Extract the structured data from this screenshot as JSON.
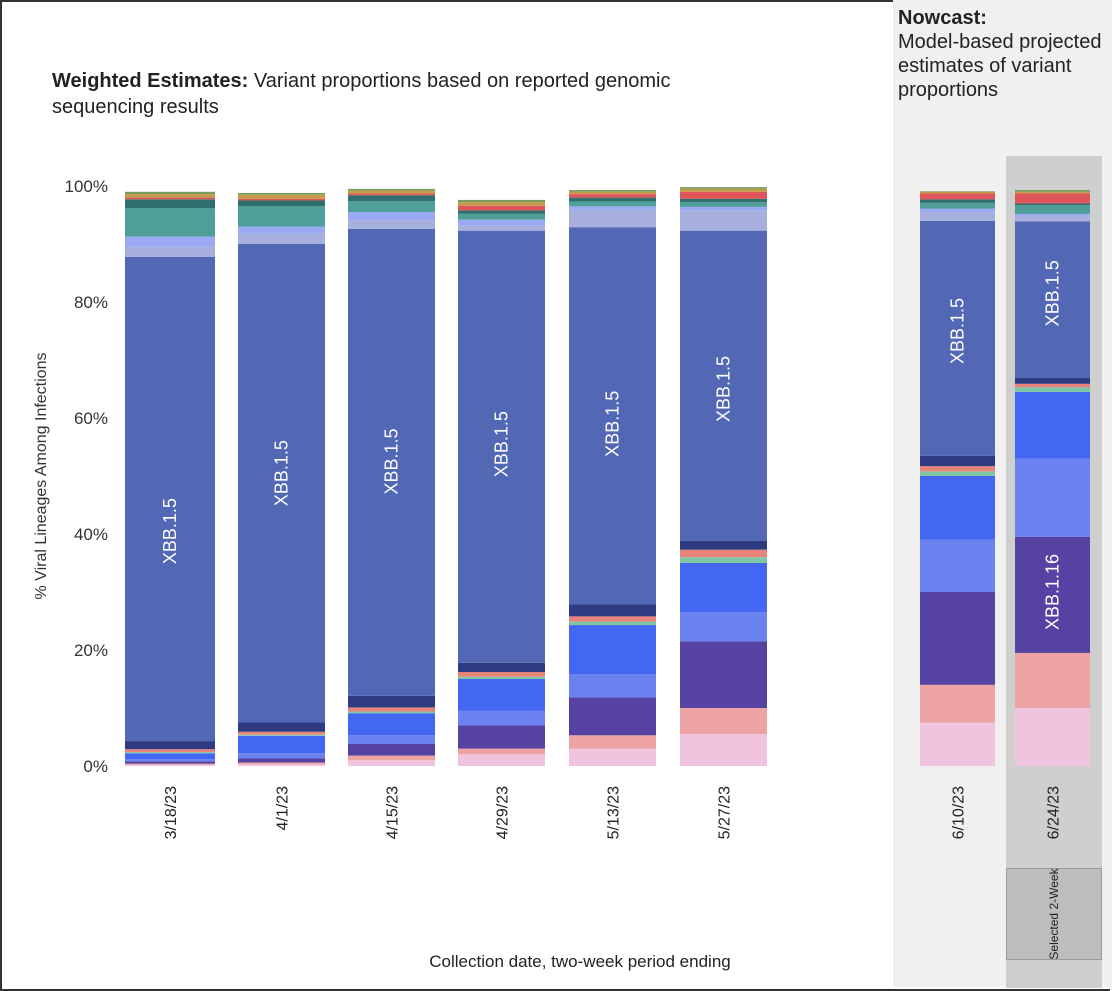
{
  "panels": {
    "weighted_title_bold": "Weighted Estimates:",
    "weighted_title_rest": " Variant proportions based on reported genomic sequencing results",
    "nowcast_title_bold": "Nowcast:",
    "nowcast_title_rest": "Model-based projected estimates of variant proportions",
    "selected_label": "Selected 2-Week"
  },
  "chart_data": {
    "type": "bar",
    "stacked": true,
    "xlabel": "Collection date, two-week period ending",
    "ylabel": "% Viral Lineages Among Infections",
    "ylim": [
      0,
      100
    ],
    "yticks": [
      "0%",
      "20%",
      "40%",
      "60%",
      "80%",
      "100%"
    ],
    "ytick_values": [
      0,
      20,
      40,
      60,
      80,
      100
    ],
    "categories": [
      "3/18/23",
      "4/1/23",
      "4/15/23",
      "4/29/23",
      "5/13/23",
      "5/27/23",
      "6/10/23",
      "6/24/23"
    ],
    "nowcast_categories": [
      "6/10/23",
      "6/24/23"
    ],
    "colors": {
      "pink_light": "#f0c4df",
      "salmon": "#eda3a3",
      "purple": "#5542a2",
      "blue_medium": "#6a82ef",
      "blue_bright": "#4367f3",
      "green_light": "#7fc6a6",
      "orange_red": "#e8847a",
      "navy": "#2e3b82",
      "xbb15_blue": "#5268b5",
      "lavender": "#a7b0dc",
      "periwinkle": "#9aa9f2",
      "teal": "#4f9e9a",
      "teal_dark": "#2f6f6e",
      "red": "#e0555a",
      "gold": "#c59a4a",
      "olive": "#7a9c5a"
    },
    "series": [
      {
        "key": "pink_light",
        "values": [
          0.2,
          0.3,
          1.0,
          2.0,
          3.0,
          5.5,
          7.5,
          10.0
        ]
      },
      {
        "key": "salmon",
        "values": [
          0.2,
          0.3,
          0.8,
          1.0,
          2.3,
          4.5,
          6.5,
          9.5
        ]
      },
      {
        "key": "purple",
        "values": [
          0.4,
          0.7,
          2.0,
          4.0,
          6.5,
          11.5,
          16.0,
          20.0
        ]
      },
      {
        "key": "blue_medium",
        "values": [
          0.4,
          0.9,
          1.5,
          2.5,
          4.0,
          5.0,
          9.0,
          13.5
        ]
      },
      {
        "key": "blue_bright",
        "values": [
          1.0,
          3.0,
          3.8,
          5.5,
          8.5,
          8.5,
          11.0,
          11.5
        ]
      },
      {
        "key": "green_light",
        "values": [
          0.2,
          0.2,
          0.3,
          0.4,
          0.6,
          1.0,
          0.8,
          0.8
        ]
      },
      {
        "key": "orange_red",
        "values": [
          0.5,
          0.5,
          0.7,
          0.8,
          0.9,
          1.3,
          0.9,
          0.6
        ]
      },
      {
        "key": "navy",
        "values": [
          1.4,
          1.6,
          2.0,
          1.6,
          2.1,
          1.5,
          1.8,
          1.0
        ]
      },
      {
        "key": "xbb15_blue",
        "values": [
          83.5,
          82.5,
          80.5,
          74.5,
          65.0,
          53.5,
          40.5,
          27.0
        ],
        "label": "XBB.1.5"
      },
      {
        "key": "lavender",
        "values": [
          1.7,
          1.8,
          1.5,
          0.9,
          3.0,
          3.5,
          1.5,
          1.0
        ]
      },
      {
        "key": "periwinkle",
        "values": [
          1.8,
          1.2,
          1.4,
          1.0,
          0.6,
          0.6,
          0.6,
          0.3
        ]
      },
      {
        "key": "teal",
        "values": [
          4.9,
          3.5,
          1.9,
          1.0,
          0.8,
          0.8,
          1.0,
          1.5
        ]
      },
      {
        "key": "teal_dark",
        "values": [
          1.5,
          1.0,
          1.0,
          0.6,
          0.7,
          0.6,
          0.6,
          0.3
        ]
      },
      {
        "key": "red",
        "values": [
          0.3,
          0.3,
          0.3,
          0.8,
          0.6,
          1.2,
          1.0,
          1.7
        ]
      },
      {
        "key": "gold",
        "values": [
          0.6,
          0.7,
          0.5,
          0.6,
          0.4,
          0.5,
          0.3,
          0.3
        ]
      },
      {
        "key": "olive",
        "values": [
          0.4,
          0.3,
          0.3,
          0.4,
          0.3,
          0.3,
          0.1,
          0.3
        ]
      }
    ],
    "annotations": [
      {
        "bar": 0,
        "text": "XBB.1.5",
        "at": 40.5
      },
      {
        "bar": 1,
        "text": "XBB.1.5",
        "at": 50.5
      },
      {
        "bar": 2,
        "text": "XBB.1.5",
        "at": 52.5
      },
      {
        "bar": 3,
        "text": "XBB.1.5",
        "at": 55.5
      },
      {
        "bar": 4,
        "text": "XBB.1.5",
        "at": 59.0
      },
      {
        "bar": 5,
        "text": "XBB.1.5",
        "at": 65.0
      },
      {
        "bar": 6,
        "text": "XBB.1.5",
        "at": 75.0
      },
      {
        "bar": 7,
        "text": "XBB.1.5",
        "at": 81.5
      },
      {
        "bar": 7,
        "text": "XBB.1.16",
        "at": 30.0
      }
    ]
  }
}
